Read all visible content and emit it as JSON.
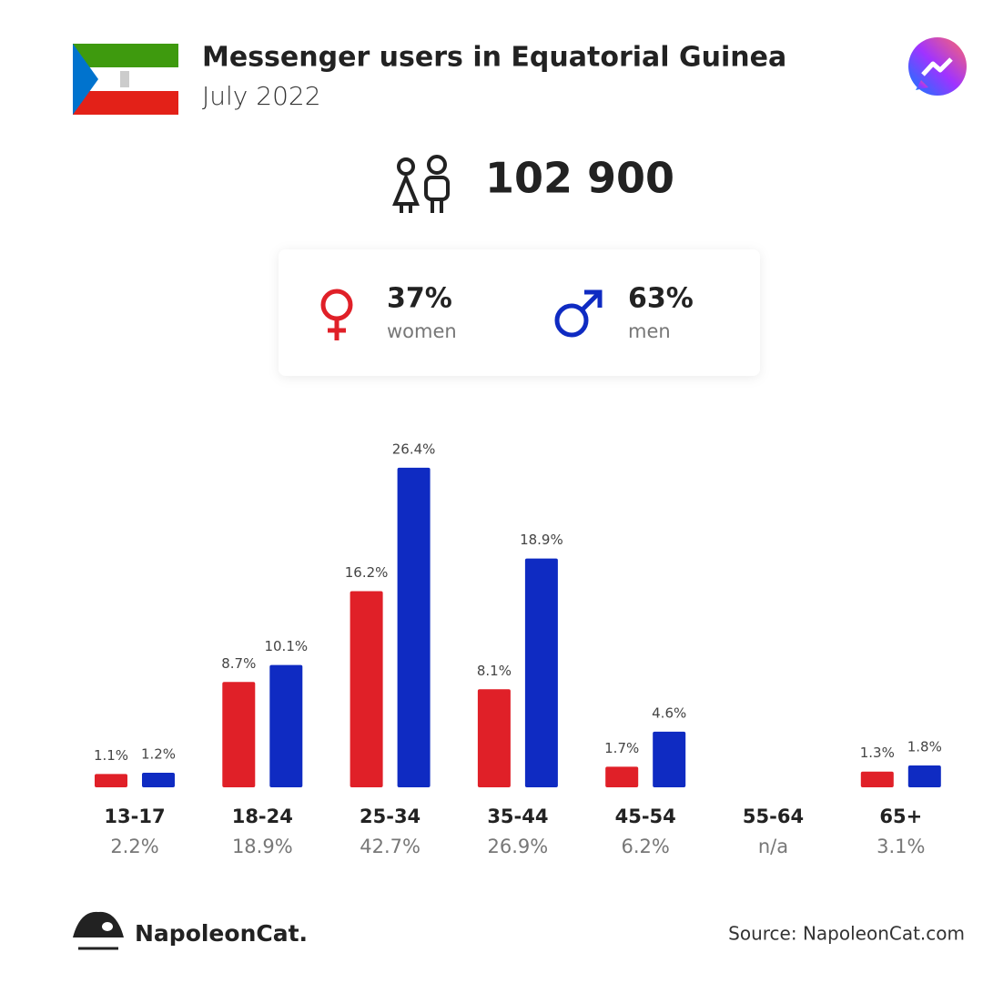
{
  "header": {
    "title": "Messenger users in Equatorial Guinea",
    "subtitle": "July 2022"
  },
  "total": "102 900",
  "gender": [
    {
      "percent": "37%",
      "label": "women"
    },
    {
      "percent": "63%",
      "label": "men"
    }
  ],
  "chart_data": {
    "type": "bar",
    "categories": [
      "13-17",
      "18-24",
      "25-34",
      "35-44",
      "45-54",
      "55-64",
      "65+"
    ],
    "totals": [
      2.2,
      18.9,
      42.7,
      26.9,
      6.2,
      null,
      3.1
    ],
    "total_labels": [
      "2.2%",
      "18.9%",
      "42.7%",
      "26.9%",
      "6.2%",
      "n/a",
      "3.1%"
    ],
    "series": [
      {
        "color": "#e02028",
        "values": [
          1.1,
          8.7,
          16.2,
          8.1,
          1.7,
          null,
          1.3
        ],
        "value_labels": [
          "1.1%",
          "8.7%",
          "16.2%",
          "8.1%",
          "1.7%",
          null,
          "1.3%"
        ]
      },
      {
        "color": "#0f2bc2",
        "values": [
          1.2,
          10.1,
          26.4,
          18.9,
          4.6,
          null,
          1.8
        ],
        "value_labels": [
          "1.2%",
          "10.1%",
          "26.4%",
          "18.9%",
          "4.6%",
          null,
          "1.8%"
        ]
      }
    ]
  },
  "footer": {
    "brand": "NapoleonCat.",
    "source": "Source: NapoleonCat.com"
  }
}
